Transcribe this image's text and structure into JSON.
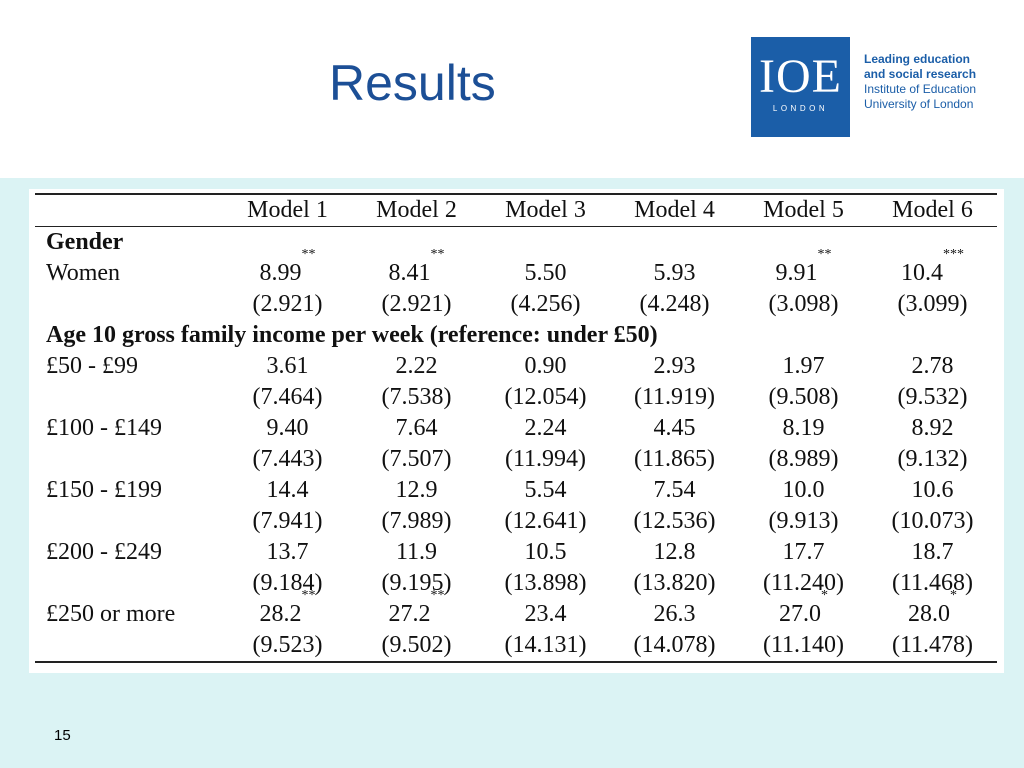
{
  "slide": {
    "title": "Results",
    "page_number": "15"
  },
  "logo": {
    "mark": "IOE",
    "city": "LONDON",
    "line1": "Leading education",
    "line2": "and social research",
    "line3": "Institute of Education",
    "line4": "University of London"
  },
  "table": {
    "columns": [
      "",
      "Model 1",
      "Model 2",
      "Model 3",
      "Model 4",
      "Model 5",
      "Model 6"
    ],
    "sections": [
      {
        "heading": "Gender",
        "rows": [
          {
            "label": "Women",
            "values": [
              "8.99",
              "8.41",
              "5.50",
              "5.93",
              "9.91",
              "10.4"
            ],
            "stars": [
              "**",
              "**",
              "",
              "",
              "**",
              "***"
            ],
            "se": [
              "(2.921)",
              "(2.921)",
              "(4.256)",
              "(4.248)",
              "(3.098)",
              "(3.099)"
            ]
          }
        ]
      },
      {
        "heading": "Age 10 gross family income per week (reference: under £50)",
        "rows": [
          {
            "label": "£50 - £99",
            "values": [
              "3.61",
              "2.22",
              "0.90",
              "2.93",
              "1.97",
              "2.78"
            ],
            "stars": [
              "",
              "",
              "",
              "",
              "",
              ""
            ],
            "se": [
              "(7.464)",
              "(7.538)",
              "(12.054)",
              "(11.919)",
              "(9.508)",
              "(9.532)"
            ]
          },
          {
            "label": "£100 - £149",
            "values": [
              "9.40",
              "7.64",
              "2.24",
              "4.45",
              "8.19",
              "8.92"
            ],
            "stars": [
              "",
              "",
              "",
              "",
              "",
              ""
            ],
            "se": [
              "(7.443)",
              "(7.507)",
              "(11.994)",
              "(11.865)",
              "(8.989)",
              "(9.132)"
            ]
          },
          {
            "label": "£150 - £199",
            "values": [
              "14.4",
              "12.9",
              "5.54",
              "7.54",
              "10.0",
              "10.6"
            ],
            "stars": [
              "",
              "",
              "",
              "",
              "",
              ""
            ],
            "se": [
              "(7.941)",
              "(7.989)",
              "(12.641)",
              "(12.536)",
              "(9.913)",
              "(10.073)"
            ]
          },
          {
            "label": "£200 - £249",
            "values": [
              "13.7",
              "11.9",
              "10.5",
              "12.8",
              "17.7",
              "18.7"
            ],
            "stars": [
              "",
              "",
              "",
              "",
              "",
              ""
            ],
            "se": [
              "(9.184)",
              "(9.195)",
              "(13.898)",
              "(13.820)",
              "(11.240)",
              "(11.468)"
            ]
          },
          {
            "label": "£250 or more",
            "values": [
              "28.2",
              "27.2",
              "23.4",
              "26.3",
              "27.0",
              "28.0"
            ],
            "stars": [
              "**",
              "**",
              "",
              "",
              "*",
              "*"
            ],
            "se": [
              "(9.523)",
              "(9.502)",
              "(14.131)",
              "(14.078)",
              "(11.140)",
              "(11.478)"
            ]
          }
        ]
      }
    ]
  },
  "colors": {
    "title": "#1c4f96",
    "logo_blue": "#1b5ea8",
    "background_band": "#dbf3f4"
  }
}
